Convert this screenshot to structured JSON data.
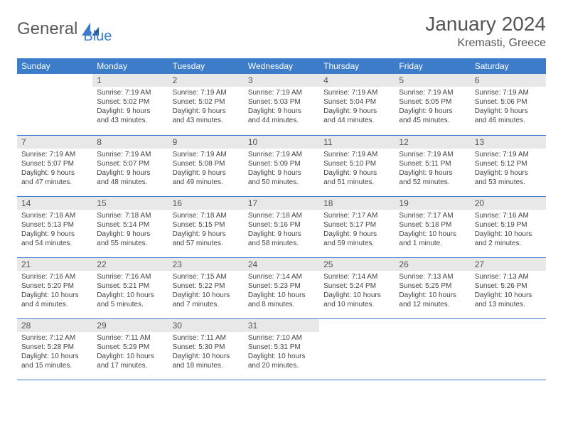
{
  "brand": {
    "part1": "General",
    "part2": "Blue"
  },
  "title": "January 2024",
  "location": "Kremasti, Greece",
  "colors": {
    "header_bg": "#3d7cc9",
    "header_text": "#ffffff",
    "daynum_bg": "#e8e8e8",
    "border": "#3d7cc9",
    "text": "#444444",
    "title_color": "#555555"
  },
  "weekdays": [
    "Sunday",
    "Monday",
    "Tuesday",
    "Wednesday",
    "Thursday",
    "Friday",
    "Saturday"
  ],
  "weeks": [
    [
      null,
      {
        "d": "1",
        "sr": "7:19 AM",
        "ss": "5:02 PM",
        "dl": "9 hours and 43 minutes."
      },
      {
        "d": "2",
        "sr": "7:19 AM",
        "ss": "5:02 PM",
        "dl": "9 hours and 43 minutes."
      },
      {
        "d": "3",
        "sr": "7:19 AM",
        "ss": "5:03 PM",
        "dl": "9 hours and 44 minutes."
      },
      {
        "d": "4",
        "sr": "7:19 AM",
        "ss": "5:04 PM",
        "dl": "9 hours and 44 minutes."
      },
      {
        "d": "5",
        "sr": "7:19 AM",
        "ss": "5:05 PM",
        "dl": "9 hours and 45 minutes."
      },
      {
        "d": "6",
        "sr": "7:19 AM",
        "ss": "5:06 PM",
        "dl": "9 hours and 46 minutes."
      }
    ],
    [
      {
        "d": "7",
        "sr": "7:19 AM",
        "ss": "5:07 PM",
        "dl": "9 hours and 47 minutes."
      },
      {
        "d": "8",
        "sr": "7:19 AM",
        "ss": "5:07 PM",
        "dl": "9 hours and 48 minutes."
      },
      {
        "d": "9",
        "sr": "7:19 AM",
        "ss": "5:08 PM",
        "dl": "9 hours and 49 minutes."
      },
      {
        "d": "10",
        "sr": "7:19 AM",
        "ss": "5:09 PM",
        "dl": "9 hours and 50 minutes."
      },
      {
        "d": "11",
        "sr": "7:19 AM",
        "ss": "5:10 PM",
        "dl": "9 hours and 51 minutes."
      },
      {
        "d": "12",
        "sr": "7:19 AM",
        "ss": "5:11 PM",
        "dl": "9 hours and 52 minutes."
      },
      {
        "d": "13",
        "sr": "7:19 AM",
        "ss": "5:12 PM",
        "dl": "9 hours and 53 minutes."
      }
    ],
    [
      {
        "d": "14",
        "sr": "7:18 AM",
        "ss": "5:13 PM",
        "dl": "9 hours and 54 minutes."
      },
      {
        "d": "15",
        "sr": "7:18 AM",
        "ss": "5:14 PM",
        "dl": "9 hours and 55 minutes."
      },
      {
        "d": "16",
        "sr": "7:18 AM",
        "ss": "5:15 PM",
        "dl": "9 hours and 57 minutes."
      },
      {
        "d": "17",
        "sr": "7:18 AM",
        "ss": "5:16 PM",
        "dl": "9 hours and 58 minutes."
      },
      {
        "d": "18",
        "sr": "7:17 AM",
        "ss": "5:17 PM",
        "dl": "9 hours and 59 minutes."
      },
      {
        "d": "19",
        "sr": "7:17 AM",
        "ss": "5:18 PM",
        "dl": "10 hours and 1 minute."
      },
      {
        "d": "20",
        "sr": "7:16 AM",
        "ss": "5:19 PM",
        "dl": "10 hours and 2 minutes."
      }
    ],
    [
      {
        "d": "21",
        "sr": "7:16 AM",
        "ss": "5:20 PM",
        "dl": "10 hours and 4 minutes."
      },
      {
        "d": "22",
        "sr": "7:16 AM",
        "ss": "5:21 PM",
        "dl": "10 hours and 5 minutes."
      },
      {
        "d": "23",
        "sr": "7:15 AM",
        "ss": "5:22 PM",
        "dl": "10 hours and 7 minutes."
      },
      {
        "d": "24",
        "sr": "7:14 AM",
        "ss": "5:23 PM",
        "dl": "10 hours and 8 minutes."
      },
      {
        "d": "25",
        "sr": "7:14 AM",
        "ss": "5:24 PM",
        "dl": "10 hours and 10 minutes."
      },
      {
        "d": "26",
        "sr": "7:13 AM",
        "ss": "5:25 PM",
        "dl": "10 hours and 12 minutes."
      },
      {
        "d": "27",
        "sr": "7:13 AM",
        "ss": "5:26 PM",
        "dl": "10 hours and 13 minutes."
      }
    ],
    [
      {
        "d": "28",
        "sr": "7:12 AM",
        "ss": "5:28 PM",
        "dl": "10 hours and 15 minutes."
      },
      {
        "d": "29",
        "sr": "7:11 AM",
        "ss": "5:29 PM",
        "dl": "10 hours and 17 minutes."
      },
      {
        "d": "30",
        "sr": "7:11 AM",
        "ss": "5:30 PM",
        "dl": "10 hours and 18 minutes."
      },
      {
        "d": "31",
        "sr": "7:10 AM",
        "ss": "5:31 PM",
        "dl": "10 hours and 20 minutes."
      },
      null,
      null,
      null
    ]
  ],
  "labels": {
    "sunrise": "Sunrise:",
    "sunset": "Sunset:",
    "daylight": "Daylight:"
  }
}
